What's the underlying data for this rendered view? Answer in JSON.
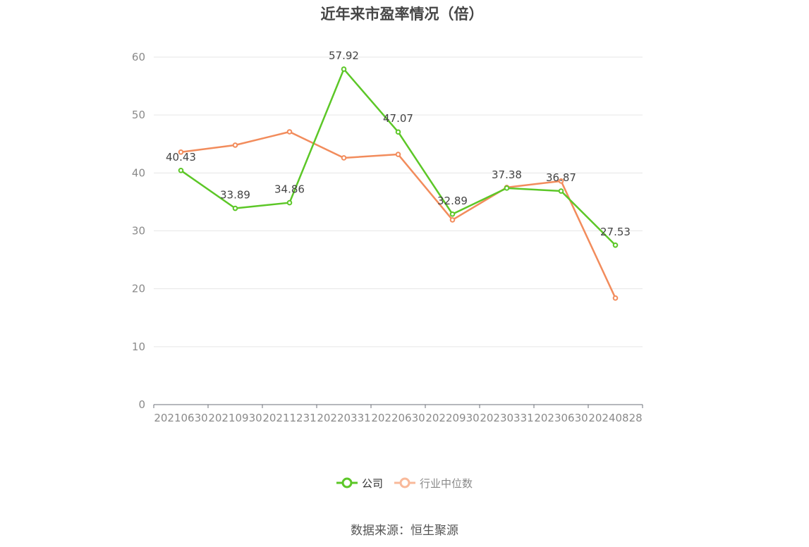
{
  "chart_data": {
    "type": "line",
    "title": "近年来市盈率情况（倍）",
    "categories": [
      "20210630",
      "20210930",
      "20211231",
      "20220331",
      "20220630",
      "20220930",
      "20230331",
      "20230630",
      "20240828"
    ],
    "series": [
      {
        "name": "公司",
        "color": "#5cc727",
        "values": [
          40.43,
          33.89,
          34.86,
          57.92,
          47.07,
          32.89,
          37.38,
          36.87,
          27.53
        ],
        "labels": [
          "40.43",
          "33.89",
          "34.86",
          "57.92",
          "47.07",
          "32.89",
          "37.38",
          "36.87",
          "27.53"
        ]
      },
      {
        "name": "行业中位数",
        "color": "#f28c5c",
        "values": [
          43.6,
          44.8,
          47.1,
          42.6,
          43.2,
          31.9,
          37.5,
          38.6,
          18.4
        ]
      }
    ],
    "ylim": [
      0,
      60
    ],
    "yticks": [
      "0",
      "10",
      "20",
      "30",
      "40",
      "50",
      "60"
    ],
    "grid": true,
    "legend_position": "bottom"
  },
  "source_text": "数据来源：恒生聚源"
}
